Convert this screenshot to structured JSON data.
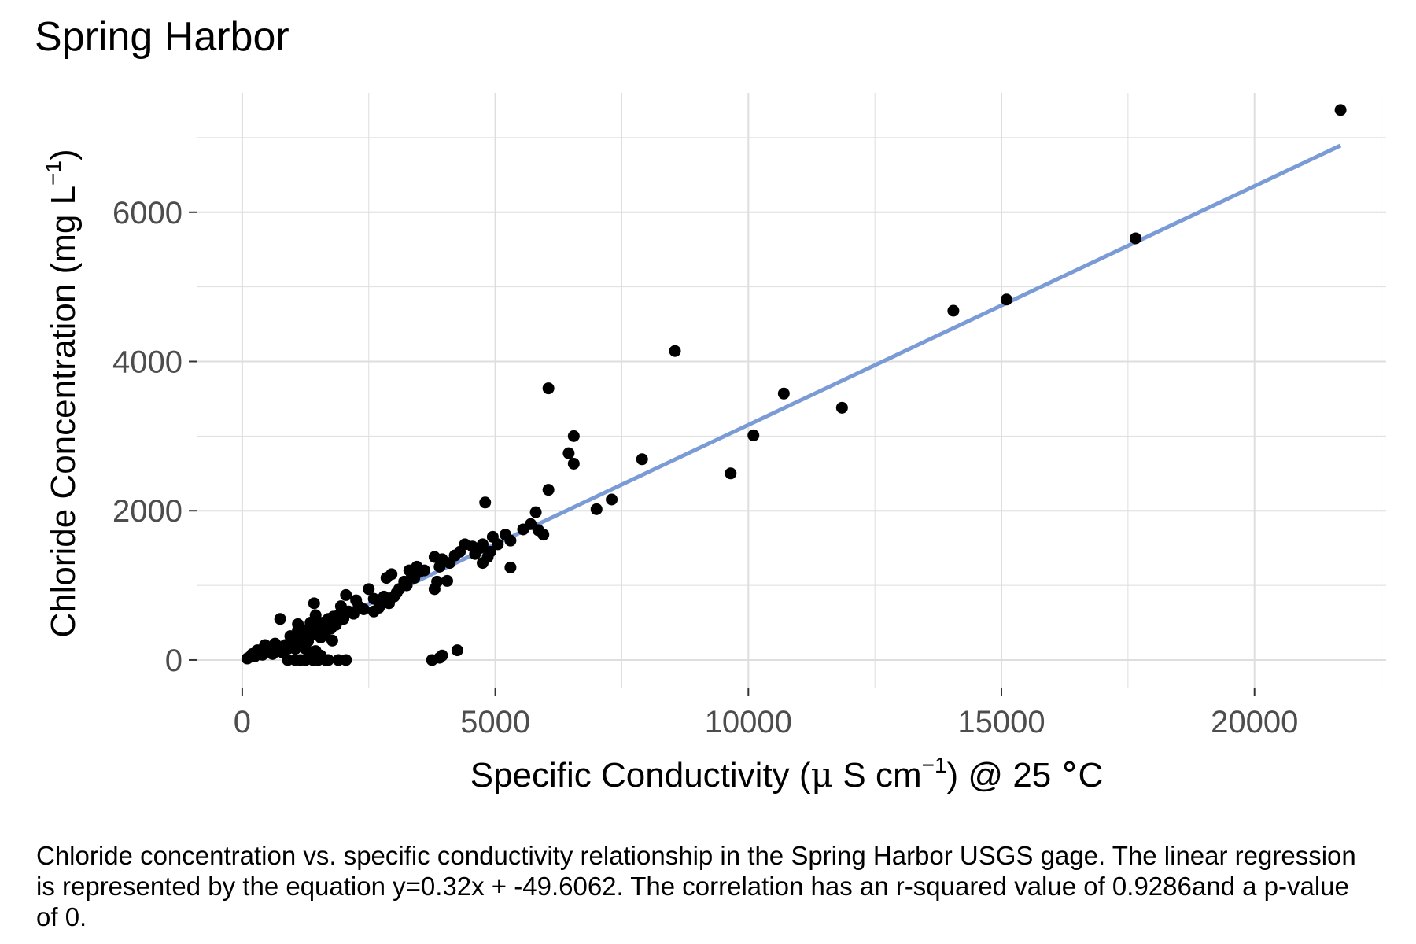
{
  "chart_data": {
    "type": "scatter",
    "title": "Spring Harbor",
    "xlabel": {
      "main": "Specific Conductivity (",
      "mu": "μ",
      "unit": " S cm",
      "exp": "−1",
      "tail": ") @ 25 ",
      "deg": "°",
      "c": "C"
    },
    "ylabel": {
      "main": "Chloride Concentration (mg L",
      "exp": "−1",
      "tail": ")"
    },
    "xlim": [
      -900,
      22600
    ],
    "ylim": [
      -380,
      7600
    ],
    "x_ticks": [
      0,
      5000,
      10000,
      15000,
      20000
    ],
    "x_tick_labels": [
      "0",
      "5000",
      "10000",
      "15000",
      "20000"
    ],
    "y_ticks": [
      0,
      2000,
      4000,
      6000
    ],
    "y_tick_labels": [
      "0",
      "2000",
      "4000",
      "6000"
    ],
    "grid": true,
    "point_color": "#000000",
    "line_color": "#7a9bd6",
    "grid_color": "#dedede",
    "regression": {
      "slope": 0.32,
      "intercept": -49.6062,
      "x_range": [
        150,
        21700
      ]
    },
    "points": [
      [
        21700,
        7370
      ],
      [
        17650,
        5650
      ],
      [
        15100,
        4830
      ],
      [
        14050,
        4680
      ],
      [
        11850,
        3380
      ],
      [
        10700,
        3570
      ],
      [
        10100,
        3010
      ],
      [
        9650,
        2500
      ],
      [
        8550,
        4140
      ],
      [
        7900,
        2690
      ],
      [
        7300,
        2150
      ],
      [
        7000,
        2020
      ],
      [
        6550,
        3000
      ],
      [
        6550,
        2630
      ],
      [
        6450,
        2770
      ],
      [
        6050,
        3640
      ],
      [
        6050,
        2280
      ],
      [
        5950,
        1680
      ],
      [
        5850,
        1740
      ],
      [
        5800,
        1980
      ],
      [
        5700,
        1820
      ],
      [
        5300,
        1240
      ],
      [
        5300,
        1600
      ],
      [
        5200,
        1680
      ],
      [
        4950,
        1650
      ],
      [
        4900,
        1450
      ],
      [
        4850,
        1380
      ],
      [
        4800,
        2110
      ],
      [
        4750,
        1550
      ],
      [
        4750,
        1300
      ],
      [
        4700,
        1500
      ],
      [
        4550,
        1520
      ],
      [
        4400,
        1550
      ],
      [
        4300,
        1450
      ],
      [
        4250,
        130
      ],
      [
        4200,
        1400
      ],
      [
        4100,
        1300
      ],
      [
        4050,
        1060
      ],
      [
        3950,
        1350
      ],
      [
        3900,
        1250
      ],
      [
        3850,
        1050
      ],
      [
        3800,
        1380
      ],
      [
        3800,
        950
      ],
      [
        3750,
        0
      ],
      [
        3900,
        30
      ],
      [
        3950,
        60
      ],
      [
        3600,
        1200
      ],
      [
        3500,
        1180
      ],
      [
        3450,
        1250
      ],
      [
        3400,
        1100
      ],
      [
        3300,
        1200
      ],
      [
        3250,
        1000
      ],
      [
        3200,
        1050
      ],
      [
        3100,
        950
      ],
      [
        3000,
        850
      ],
      [
        2950,
        1150
      ],
      [
        2850,
        1100
      ],
      [
        2800,
        850
      ],
      [
        2700,
        780
      ],
      [
        2600,
        820
      ],
      [
        2500,
        950
      ],
      [
        2400,
        680
      ],
      [
        2300,
        720
      ],
      [
        2200,
        620
      ],
      [
        2100,
        650
      ],
      [
        2050,
        870
      ],
      [
        2000,
        550
      ],
      [
        1950,
        720
      ],
      [
        1900,
        600
      ],
      [
        1850,
        470
      ],
      [
        1800,
        580
      ],
      [
        1750,
        420
      ],
      [
        1700,
        550
      ],
      [
        1650,
        380
      ],
      [
        1600,
        500
      ],
      [
        1550,
        300
      ],
      [
        1500,
        450
      ],
      [
        1450,
        600
      ],
      [
        1420,
        760
      ],
      [
        1400,
        350
      ],
      [
        1350,
        500
      ],
      [
        1300,
        250
      ],
      [
        1250,
        400
      ],
      [
        1200,
        180
      ],
      [
        1150,
        300
      ],
      [
        1100,
        400
      ],
      [
        1050,
        150
      ],
      [
        1000,
        250
      ],
      [
        950,
        320
      ],
      [
        900,
        150
      ],
      [
        850,
        200
      ],
      [
        800,
        100
      ],
      [
        750,
        550
      ],
      [
        700,
        150
      ],
      [
        650,
        220
      ],
      [
        600,
        80
      ],
      [
        550,
        150
      ],
      [
        500,
        120
      ],
      [
        450,
        200
      ],
      [
        400,
        70
      ],
      [
        350,
        100
      ],
      [
        300,
        130
      ],
      [
        250,
        50
      ],
      [
        200,
        80
      ],
      [
        150,
        40
      ],
      [
        100,
        20
      ],
      [
        900,
        0
      ],
      [
        1050,
        0
      ],
      [
        1150,
        0
      ],
      [
        1250,
        0
      ],
      [
        1400,
        0
      ],
      [
        1500,
        0
      ],
      [
        1700,
        0
      ],
      [
        1900,
        0
      ],
      [
        2050,
        0
      ],
      [
        1350,
        80
      ],
      [
        1450,
        120
      ],
      [
        1250,
        150
      ],
      [
        1650,
        0
      ],
      [
        1550,
        60
      ],
      [
        2250,
        800
      ],
      [
        2600,
        650
      ],
      [
        3050,
        900
      ],
      [
        3350,
        1150
      ],
      [
        4600,
        1420
      ],
      [
        5050,
        1550
      ],
      [
        5550,
        1750
      ],
      [
        1100,
        480
      ],
      [
        1600,
        330
      ],
      [
        1780,
        260
      ],
      [
        2700,
        700
      ],
      [
        2900,
        760
      ]
    ]
  },
  "caption": "Chloride concentration vs. specific conductivity relationship in the Spring Harbor USGS gage. The linear regression is represented by the equation y=0.32x + -49.6062. The correlation has an r-squared value of 0.9286and a p-value of 0."
}
